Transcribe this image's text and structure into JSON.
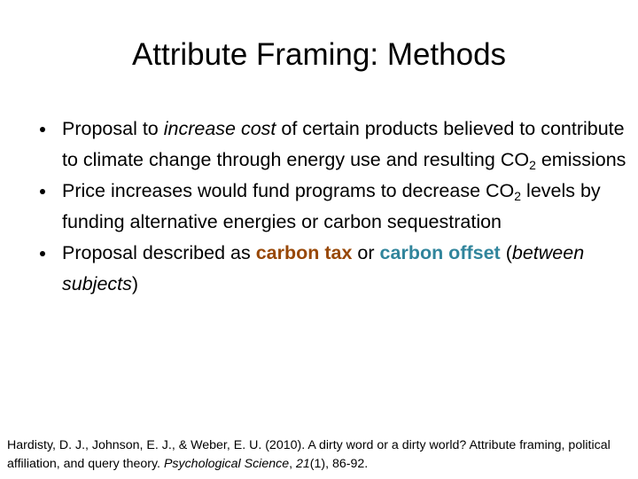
{
  "title": "Attribute Framing: Methods",
  "bullets": [
    [
      "Proposal to ",
      "increase cost",
      " of certain products believed to contribute to climate change through energy use and resulting CO",
      "2",
      " emissions"
    ],
    [
      "Price increases would fund programs to decrease CO",
      "2",
      " levels by funding alternative energies or carbon sequestration"
    ],
    [
      "Proposal described as ",
      "carbon tax",
      " or ",
      "carbon offset",
      " (",
      "between subjects",
      ")"
    ]
  ],
  "citation": [
    "Hardisty, D. J., Johnson, E. J., & Weber, E. U. (2010). A dirty word or a dirty world? Attribute framing, political affiliation, and query theory. ",
    "Psychological Science",
    ", ",
    "21",
    "(1), 86-92."
  ]
}
